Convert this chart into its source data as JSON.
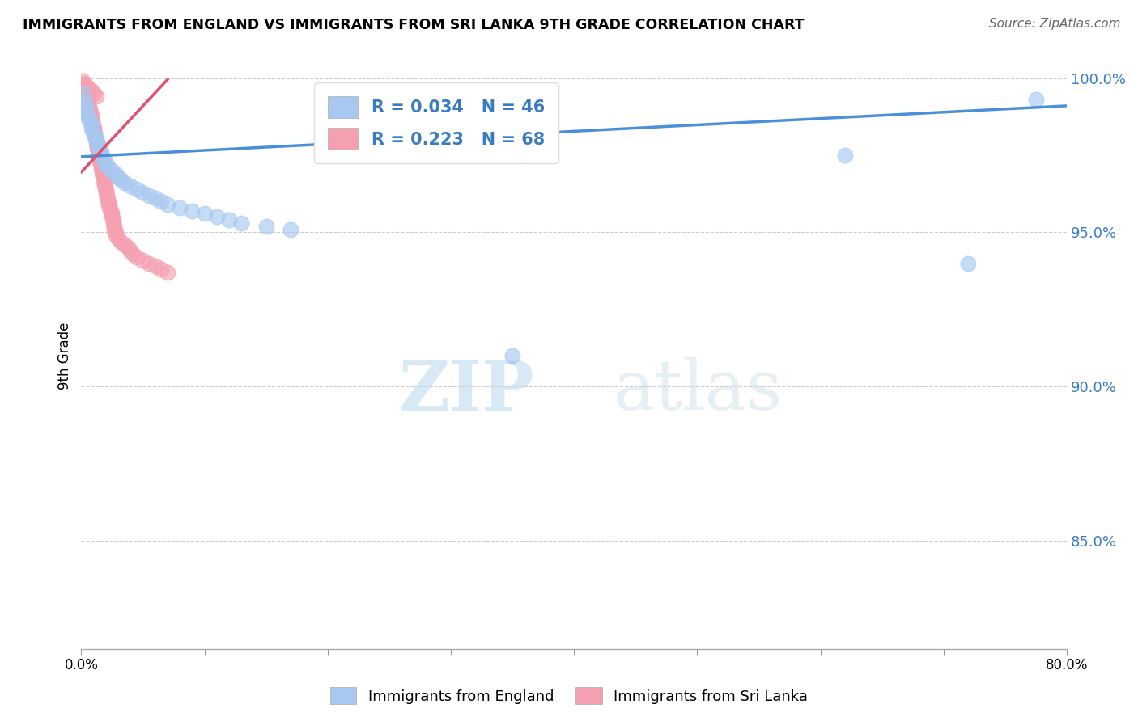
{
  "title": "IMMIGRANTS FROM ENGLAND VS IMMIGRANTS FROM SRI LANKA 9TH GRADE CORRELATION CHART",
  "source": "Source: ZipAtlas.com",
  "ylabel": "9th Grade",
  "england_color": "#a8c8f0",
  "srilanka_color": "#f4a0b0",
  "england_line_color": "#4a90d9",
  "srilanka_line_color": "#e05070",
  "watermark_zip": "ZIP",
  "watermark_atlas": "atlas",
  "legend_label_england": "Immigrants from England",
  "legend_label_srilanka": "Immigrants from Sri Lanka",
  "xlim": [
    0.0,
    0.8
  ],
  "ylim": [
    0.815,
    1.005
  ],
  "y_tick_vals": [
    1.0,
    0.95,
    0.9,
    0.85
  ],
  "y_tick_labels": [
    "100.0%",
    "95.0%",
    "90.0%",
    "85.0%"
  ],
  "x_tick_vals": [
    0.0,
    0.1,
    0.2,
    0.3,
    0.4,
    0.5,
    0.6,
    0.7,
    0.8
  ],
  "x_tick_labels": [
    "0.0%",
    "",
    "",
    "",
    "",
    "",
    "",
    "",
    "80.0%"
  ],
  "england_R": 0.034,
  "england_N": 46,
  "srilanka_R": 0.223,
  "srilanka_N": 68,
  "england_x": [
    0.001,
    0.002,
    0.003,
    0.004,
    0.005,
    0.006,
    0.007,
    0.008,
    0.008,
    0.009,
    0.01,
    0.011,
    0.012,
    0.013,
    0.014,
    0.015,
    0.016,
    0.017,
    0.018,
    0.019,
    0.02,
    0.022,
    0.025,
    0.028,
    0.03,
    0.032,
    0.035,
    0.04,
    0.045,
    0.05,
    0.055,
    0.06,
    0.065,
    0.07,
    0.08,
    0.09,
    0.1,
    0.11,
    0.12,
    0.13,
    0.15,
    0.17,
    0.35,
    0.62,
    0.72,
    0.775
  ],
  "england_y": [
    0.99,
    0.995,
    0.992,
    0.991,
    0.988,
    0.987,
    0.986,
    0.985,
    0.984,
    0.983,
    0.982,
    0.981,
    0.98,
    0.979,
    0.978,
    0.977,
    0.976,
    0.975,
    0.974,
    0.973,
    0.972,
    0.971,
    0.97,
    0.969,
    0.968,
    0.967,
    0.966,
    0.965,
    0.964,
    0.963,
    0.962,
    0.961,
    0.96,
    0.959,
    0.958,
    0.957,
    0.956,
    0.955,
    0.954,
    0.953,
    0.952,
    0.951,
    0.91,
    0.975,
    0.94,
    0.993
  ],
  "srilanka_x": [
    0.001,
    0.002,
    0.003,
    0.004,
    0.004,
    0.005,
    0.005,
    0.006,
    0.006,
    0.007,
    0.007,
    0.008,
    0.008,
    0.009,
    0.009,
    0.01,
    0.01,
    0.011,
    0.011,
    0.012,
    0.012,
    0.013,
    0.013,
    0.014,
    0.014,
    0.015,
    0.015,
    0.016,
    0.016,
    0.017,
    0.017,
    0.018,
    0.018,
    0.019,
    0.019,
    0.02,
    0.02,
    0.021,
    0.021,
    0.022,
    0.022,
    0.023,
    0.024,
    0.025,
    0.025,
    0.026,
    0.026,
    0.027,
    0.027,
    0.028,
    0.028,
    0.03,
    0.032,
    0.035,
    0.038,
    0.04,
    0.042,
    0.045,
    0.05,
    0.055,
    0.06,
    0.065,
    0.07,
    0.003,
    0.005,
    0.008,
    0.01,
    0.012
  ],
  "srilanka_y": [
    0.999,
    0.998,
    0.997,
    0.996,
    0.995,
    0.994,
    0.993,
    0.992,
    0.991,
    0.99,
    0.989,
    0.988,
    0.987,
    0.986,
    0.985,
    0.984,
    0.983,
    0.982,
    0.981,
    0.98,
    0.979,
    0.978,
    0.977,
    0.976,
    0.975,
    0.974,
    0.973,
    0.972,
    0.971,
    0.97,
    0.969,
    0.968,
    0.967,
    0.966,
    0.965,
    0.964,
    0.963,
    0.962,
    0.961,
    0.96,
    0.959,
    0.958,
    0.957,
    0.956,
    0.955,
    0.954,
    0.953,
    0.952,
    0.951,
    0.95,
    0.949,
    0.948,
    0.947,
    0.946,
    0.945,
    0.944,
    0.943,
    0.942,
    0.941,
    0.94,
    0.939,
    0.938,
    0.937,
    0.998,
    0.997,
    0.996,
    0.995,
    0.994
  ],
  "england_line_x": [
    0.0,
    0.8
  ],
  "england_line_y": [
    0.9745,
    0.9955
  ],
  "srilanka_line_x": [
    0.0,
    0.003
  ],
  "srilanka_line_y": [
    0.9745,
    0.9755
  ]
}
